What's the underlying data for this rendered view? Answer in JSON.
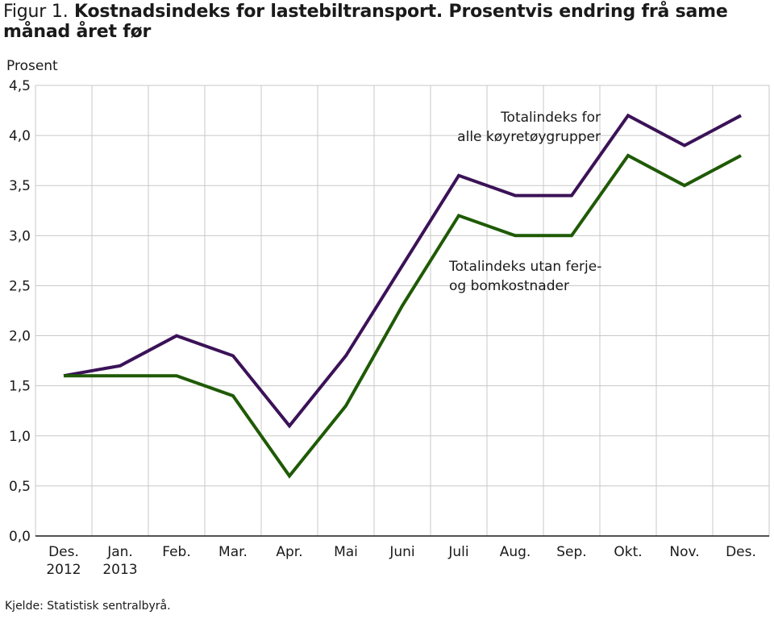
{
  "header": {
    "fig_label": "Figur 1.",
    "title": "Kostnadsindeks for lastebiltransport. Prosentvis endring frå same månad året før"
  },
  "source": "Kjelde: Statistisk sentralbyrå.",
  "chart_data": {
    "type": "line",
    "ylabel": "Prosent",
    "xlabel": "",
    "ylim": [
      0,
      4.5
    ],
    "yticks": [
      "0,0",
      "0,5",
      "1,0",
      "1,5",
      "2,0",
      "2,5",
      "3,0",
      "3,5",
      "4,0",
      "4,5"
    ],
    "grid": true,
    "categories": [
      [
        "Des.",
        "2012"
      ],
      [
        "Jan.",
        "2013"
      ],
      [
        "Feb."
      ],
      [
        "Mar."
      ],
      [
        "Apr."
      ],
      [
        "Mai"
      ],
      [
        "Juni"
      ],
      [
        "Juli"
      ],
      [
        "Aug."
      ],
      [
        "Sep."
      ],
      [
        "Okt."
      ],
      [
        "Nov."
      ],
      [
        "Des."
      ]
    ],
    "series": [
      {
        "name": "Totalindeks for alle køyretøygrupper",
        "label_lines": [
          "Totalindeks for",
          "alle køyretøygrupper"
        ],
        "color": "#3b1257",
        "values": [
          1.6,
          1.7,
          2.0,
          1.8,
          1.1,
          1.8,
          2.7,
          3.6,
          3.4,
          3.4,
          4.2,
          3.9,
          4.2
        ]
      },
      {
        "name": "Totalindeks utan ferje- og bomkostnader",
        "label_lines": [
          "Totalindeks utan ferje-",
          "og bomkostnader"
        ],
        "color": "#1f5a05",
        "values": [
          1.6,
          1.6,
          1.6,
          1.4,
          0.6,
          1.3,
          2.3,
          3.2,
          3.0,
          3.0,
          3.8,
          3.5,
          3.8
        ]
      }
    ]
  }
}
